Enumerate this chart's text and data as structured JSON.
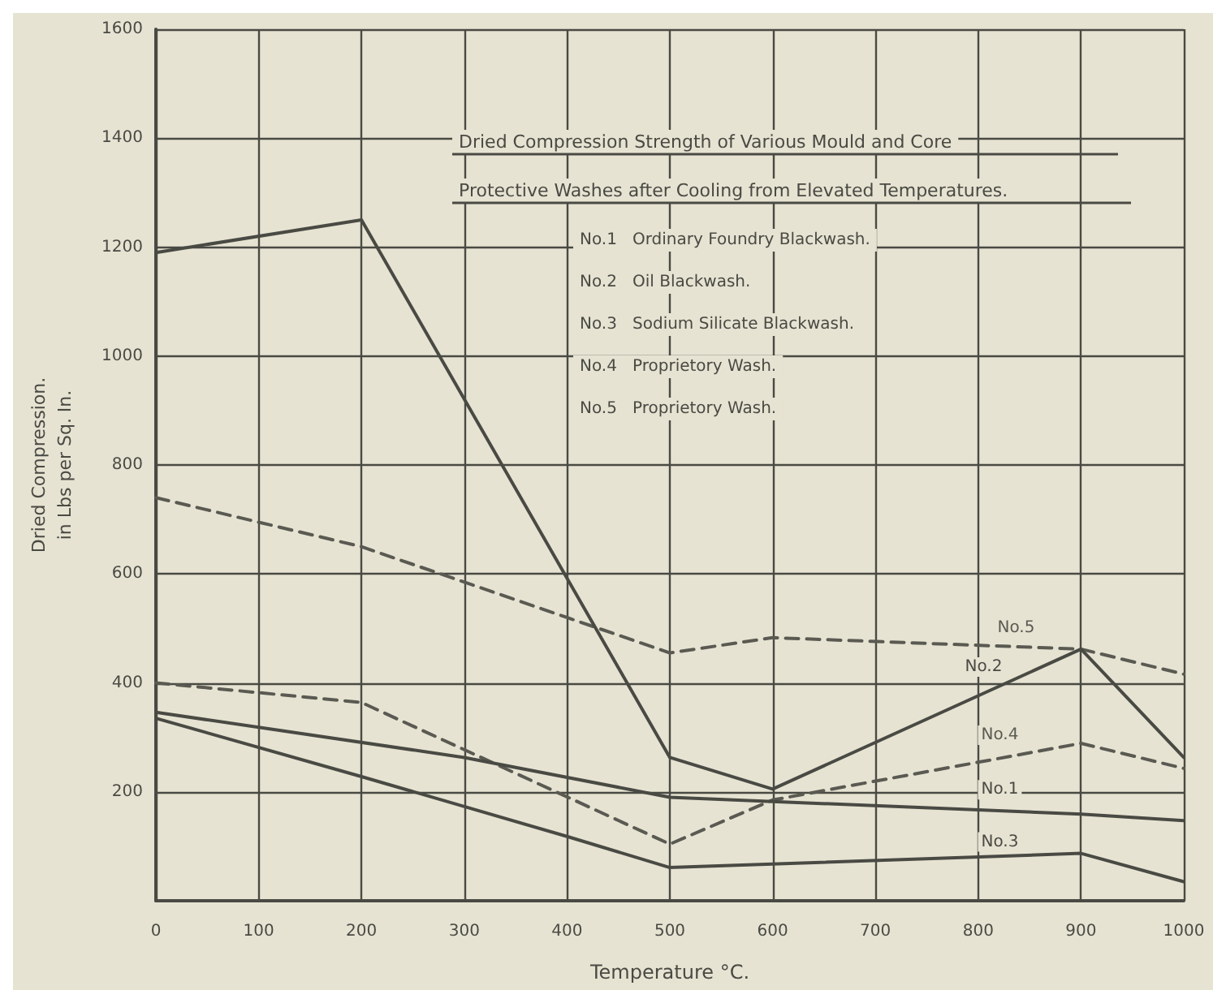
{
  "chart_data": {
    "type": "line",
    "title": "Dried Compression Strength of Various Mould and Core",
    "subtitle": "Protective Washes after Cooling from Elevated Temperatures.",
    "xlabel": "Temperature °C.",
    "ylabel": "Dried Compression.\nin Lbs per Sq. In.",
    "annotations": [
      "No.1   Ordinary Foundry Blackwash.",
      "No.2   Oil Blackwash.",
      "No.3   Sodium Silicate Blackwash.",
      "No.4   Proprietory Wash.",
      "No.5   Proprietory Wash."
    ],
    "series": [
      {
        "name": "No.5",
        "color": "#5a5a52",
        "line_style": "dashed",
        "x": [
          0,
          200,
          400,
          500,
          600,
          900,
          1000
        ],
        "values": [
          740,
          650,
          520,
          455,
          483,
          462,
          416
        ]
      },
      {
        "name": "No.2",
        "color": "#4a4a44",
        "line_style": "solid",
        "x": [
          0,
          200,
          500,
          600,
          900,
          1000
        ],
        "values": [
          1190,
          1250,
          263,
          205,
          462,
          263
        ]
      },
      {
        "name": "No.4",
        "color": "#5a5a52",
        "line_style": "dashed",
        "x": [
          0,
          200,
          500,
          600,
          900,
          1000
        ],
        "values": [
          400,
          364,
          104,
          185,
          289,
          243
        ]
      },
      {
        "name": "No.1",
        "color": "#4a4a44",
        "line_style": "solid",
        "x": [
          0,
          300,
          500,
          900,
          1000
        ],
        "values": [
          346,
          263,
          190,
          159,
          147
        ]
      },
      {
        "name": "No.3",
        "color": "#4a4a44",
        "line_style": "solid",
        "x": [
          0,
          200,
          400,
          500,
          900,
          1000
        ],
        "values": [
          335,
          228,
          118,
          61,
          87,
          35
        ]
      }
    ],
    "xlim": [
      0,
      1000
    ],
    "xticks": [
      0,
      100,
      200,
      300,
      400,
      500,
      600,
      700,
      800,
      900,
      1000
    ],
    "ylim": [
      0,
      1600
    ],
    "yticks": [
      200,
      400,
      600,
      800,
      1000,
      1200,
      1400,
      1600
    ],
    "grid": true,
    "legend": false,
    "marker": "none"
  }
}
